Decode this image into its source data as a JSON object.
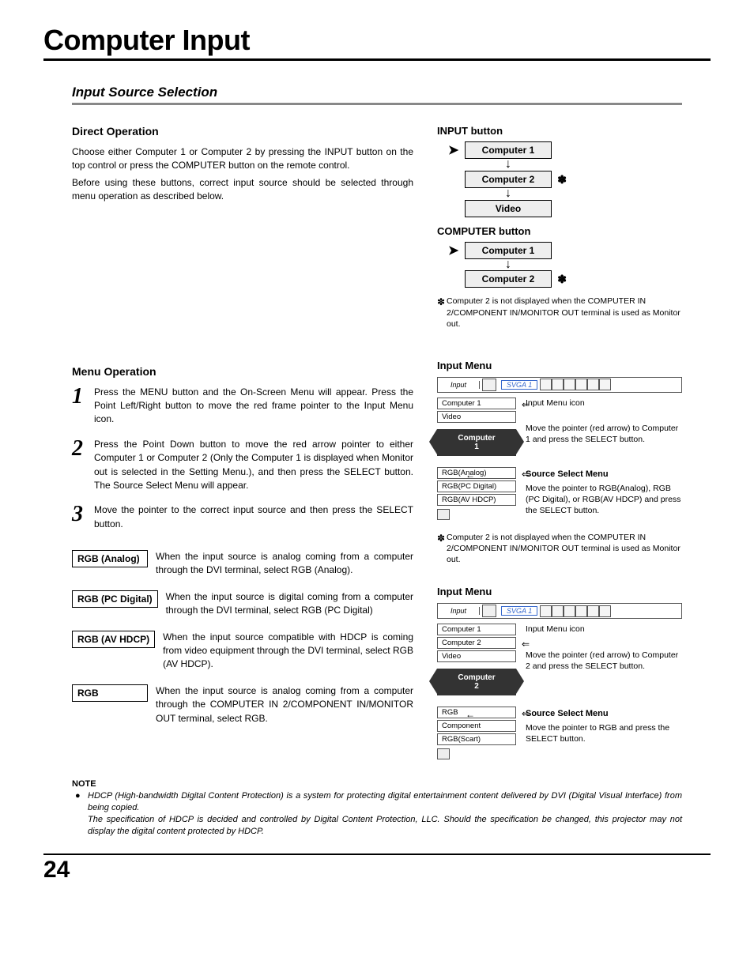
{
  "page": {
    "title": "Computer Input",
    "section": "Input Source Selection",
    "number": "24"
  },
  "direct": {
    "heading": "Direct Operation",
    "p1": "Choose either Computer 1 or Computer 2 by pressing the INPUT button on the top control or press the COMPUTER button on the remote control.",
    "p2": "Before using these buttons, correct input source should be selected through menu operation as described below."
  },
  "menu": {
    "heading": "Menu Operation",
    "steps": [
      {
        "n": "1",
        "t": "Press the MENU button and the On-Screen Menu will appear. Press the Point Left/Right button to move the red frame pointer to the Input Menu icon."
      },
      {
        "n": "2",
        "t": "Press the Point Down button to move the red arrow pointer to either Computer 1 or Computer 2 (Only the Computer 1 is displayed when Monitor out is selected in the Setting Menu.), and then press the SELECT button.  The Source Select Menu will appear."
      },
      {
        "n": "3",
        "t": "Move the pointer to the correct input source and then press the SELECT button."
      }
    ],
    "options": [
      {
        "k": "RGB (Analog)",
        "t": "When the input source is analog coming from a computer through the DVI terminal, select RGB (Analog)."
      },
      {
        "k": "RGB (PC Digital)",
        "t": "When the input source is digital coming from a computer through the DVI terminal, select RGB (PC Digital)"
      },
      {
        "k": "RGB (AV HDCP)",
        "t": "When the input source compatible with HDCP is coming from video equipment through the DVI terminal, select RGB (AV HDCP)."
      },
      {
        "k": "RGB",
        "t": "When the input source is analog coming from a computer through the COMPUTER IN 2/COMPONENT IN/MONITOR OUT terminal, select RGB."
      }
    ]
  },
  "note": {
    "heading": "NOTE",
    "p1": "HDCP (High-bandwidth Digital Content Protection) is a system for protecting digital entertainment content delivered by DVI (Digital Visual Interface) from being copied.",
    "p2": "The specification of HDCP is decided and controlled by Digital Content Protection, LLC. Should the specification be changed, this projector may not display the digital content protected by HDCP."
  },
  "right": {
    "input_btn": {
      "heading": "INPUT button",
      "items": [
        "Computer 1",
        "Computer 2",
        "Video"
      ],
      "asterisk_index": 1
    },
    "computer_btn": {
      "heading": "COMPUTER button",
      "items": [
        "Computer 1",
        "Computer 2"
      ],
      "asterisk_index": 1
    },
    "asterisk_note": "Computer 2 is not displayed when the COMPUTER IN 2/COMPONENT IN/MONITOR OUT terminal is used as Monitor out.",
    "menu1": {
      "heading": "Input Menu",
      "bar_label": "Input",
      "bar_mode": "SVGA 1",
      "list": [
        "Computer 1",
        "Video"
      ],
      "arrow_index": 0,
      "dark": "Computer\n1",
      "annot_icon": "Input Menu icon",
      "annot_move": "Move the pointer (red arrow) to Computer 1 and press the SELECT button.",
      "source_title": "Source Select Menu",
      "source_list": [
        "RGB(Analog)",
        "RGB(PC Digital)",
        "RGB(AV HDCP)"
      ],
      "source_annot": "Move the pointer to RGB(Analog), RGB (PC Digital), or RGB(AV HDCP) and press the SELECT button."
    },
    "menu2": {
      "heading": "Input Menu",
      "bar_label": "Input",
      "bar_mode": "SVGA 1",
      "list": [
        "Computer 1",
        "Computer 2",
        "Video"
      ],
      "arrow_index": 1,
      "dark": "Computer\n2",
      "annot_icon": "Input Menu icon",
      "annot_move": "Move the pointer (red arrow) to Computer 2 and press the SELECT button.",
      "source_title": "Source Select Menu",
      "source_list": [
        "RGB",
        "Component",
        "RGB(Scart)"
      ],
      "source_annot": "Move the pointer to RGB and press the SELECT button."
    }
  },
  "colors": {
    "rule": "#888888",
    "box_bg": "#eeeeee",
    "dark_bg": "#333333",
    "accent_blue": "#3366cc"
  }
}
